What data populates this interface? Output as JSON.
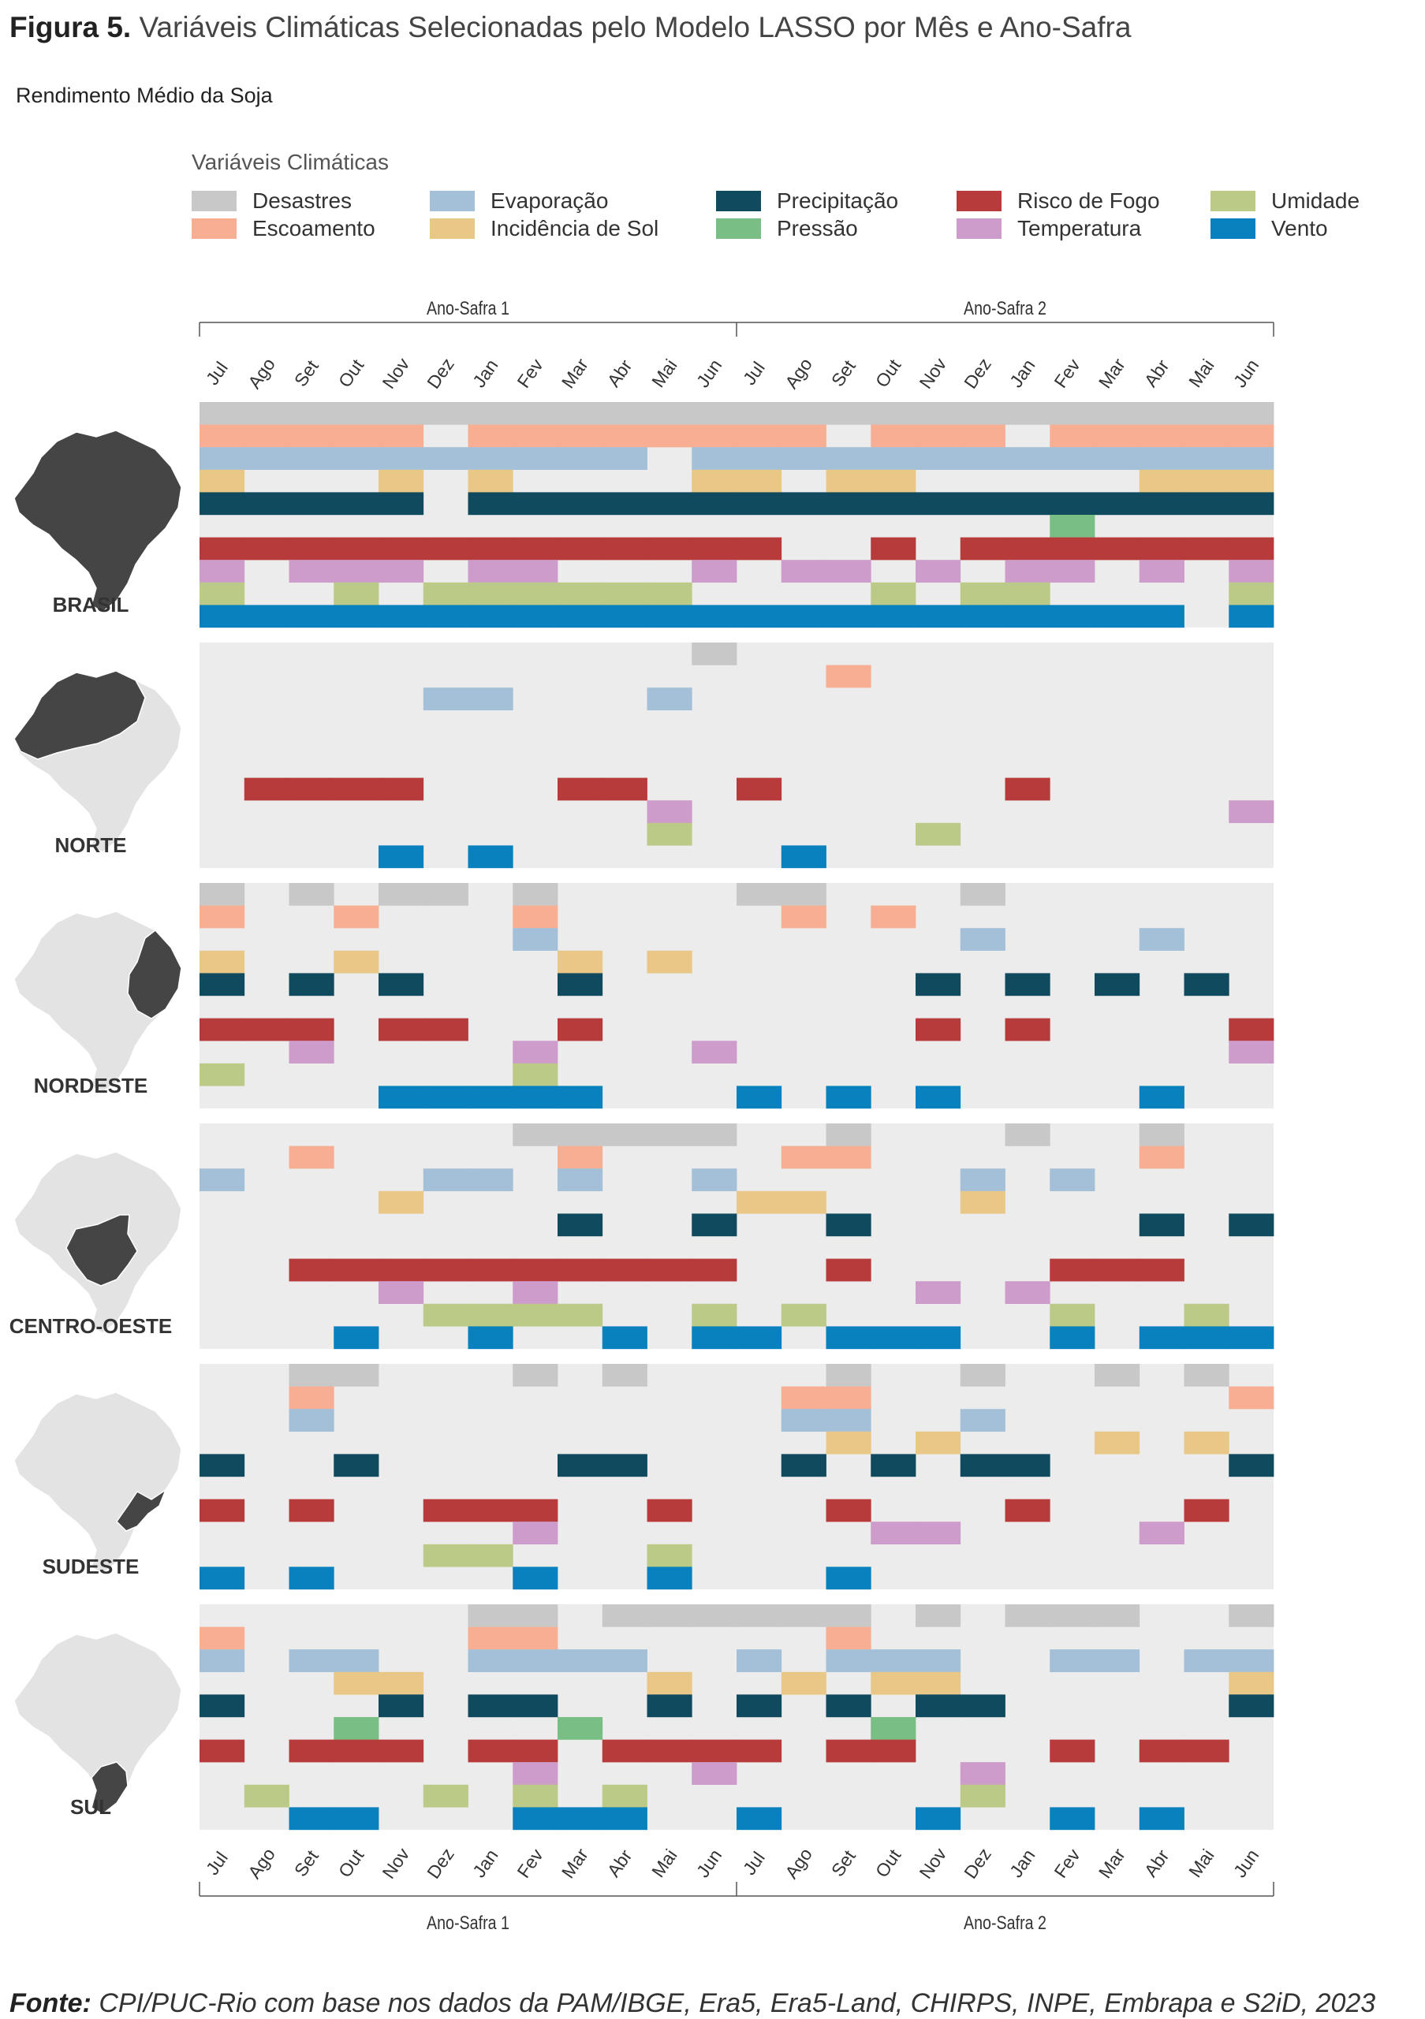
{
  "figure": {
    "label": "Figura 5.",
    "title": "Variáveis Climáticas Selecionadas pelo Modelo LASSO por Mês e Ano-Safra",
    "subtitle": "Rendimento Médio da Soja",
    "source_label": "Fonte:",
    "source_text": "CPI/PUC-Rio com base nos dados da PAM/IBGE, Era5, Era5-Land, CHIRPS, INPE, Embrapa e S2iD, 2023"
  },
  "chart_data": {
    "type": "heatmap",
    "legend_title": "Variáveis Climáticas",
    "variables": [
      {
        "name": "Desastres",
        "color": "#c8c8c8"
      },
      {
        "name": "Escoamento",
        "color": "#f7ae93"
      },
      {
        "name": "Evaporação",
        "color": "#a3c0d8"
      },
      {
        "name": "Incidência de Sol",
        "color": "#e9c887"
      },
      {
        "name": "Precipitação",
        "color": "#0f4a5f"
      },
      {
        "name": "Pressão",
        "color": "#79be85"
      },
      {
        "name": "Risco de Fogo",
        "color": "#b83b3c"
      },
      {
        "name": "Temperatura",
        "color": "#ce9cca"
      },
      {
        "name": "Umidade",
        "color": "#bcca88"
      },
      {
        "name": "Vento",
        "color": "#0981be"
      }
    ],
    "periods": [
      "Ano-Safra 1",
      "Ano-Safra 2"
    ],
    "months": [
      "Jul",
      "Ago",
      "Set",
      "Out",
      "Nov",
      "Dez",
      "Jan",
      "Fev",
      "Mar",
      "Abr",
      "Mai",
      "Jun",
      "Jul",
      "Ago",
      "Set",
      "Out",
      "Nov",
      "Dez",
      "Jan",
      "Fev",
      "Mar",
      "Abr",
      "Mai",
      "Jun"
    ],
    "background_color": "#ececec",
    "regions": [
      {
        "name": "BRASIL",
        "selected": {
          "Desastres": [
            0,
            1,
            2,
            3,
            4,
            5,
            6,
            7,
            8,
            9,
            10,
            11,
            12,
            13,
            14,
            15,
            16,
            17,
            18,
            19,
            20,
            21,
            22,
            23
          ],
          "Escoamento": [
            0,
            1,
            2,
            3,
            4,
            6,
            7,
            8,
            9,
            10,
            11,
            12,
            13,
            15,
            16,
            17,
            19,
            20,
            21,
            22,
            23
          ],
          "Evaporação": [
            0,
            1,
            2,
            3,
            4,
            5,
            6,
            7,
            8,
            9,
            11,
            12,
            13,
            14,
            15,
            16,
            17,
            18,
            19,
            20,
            21,
            22,
            23
          ],
          "Incidência de Sol": [
            0,
            4,
            6,
            11,
            12,
            14,
            15,
            21,
            22,
            23
          ],
          "Precipitação": [
            0,
            1,
            2,
            3,
            4,
            6,
            7,
            8,
            9,
            10,
            11,
            12,
            13,
            14,
            15,
            16,
            17,
            18,
            19,
            20,
            21,
            22,
            23
          ],
          "Pressão": [
            19
          ],
          "Risco de Fogo": [
            0,
            1,
            2,
            3,
            4,
            5,
            6,
            7,
            8,
            9,
            10,
            11,
            12,
            15,
            17,
            18,
            19,
            20,
            21,
            22,
            23
          ],
          "Temperatura": [
            0,
            2,
            3,
            4,
            6,
            7,
            11,
            13,
            14,
            16,
            18,
            19,
            21,
            23
          ],
          "Umidade": [
            0,
            3,
            5,
            6,
            7,
            8,
            9,
            10,
            15,
            17,
            18,
            23
          ],
          "Vento": [
            0,
            1,
            2,
            3,
            4,
            5,
            6,
            7,
            8,
            9,
            10,
            11,
            12,
            13,
            14,
            15,
            16,
            17,
            18,
            19,
            20,
            21,
            23
          ]
        }
      },
      {
        "name": "NORTE",
        "selected": {
          "Desastres": [
            11
          ],
          "Escoamento": [
            14
          ],
          "Evaporação": [
            5,
            6,
            10
          ],
          "Risco de Fogo": [
            1,
            2,
            3,
            4,
            8,
            9,
            12,
            18
          ],
          "Temperatura": [
            10,
            23
          ],
          "Umidade": [
            10,
            16
          ],
          "Vento": [
            4,
            6,
            13
          ]
        }
      },
      {
        "name": "NORDESTE",
        "selected": {
          "Desastres": [
            0,
            2,
            4,
            5,
            7,
            12,
            13,
            17
          ],
          "Escoamento": [
            0,
            3,
            7,
            13,
            15
          ],
          "Evaporação": [
            7,
            17,
            21
          ],
          "Incidência de Sol": [
            0,
            3,
            8,
            10
          ],
          "Precipitação": [
            0,
            2,
            4,
            8,
            16,
            18,
            20,
            22
          ],
          "Risco de Fogo": [
            0,
            1,
            2,
            4,
            5,
            8,
            16,
            18,
            23
          ],
          "Temperatura": [
            2,
            7,
            11,
            23
          ],
          "Umidade": [
            0,
            7
          ],
          "Vento": [
            4,
            5,
            6,
            7,
            8,
            12,
            14,
            16,
            21
          ]
        }
      },
      {
        "name": "CENTRO-OESTE",
        "selected": {
          "Desastres": [
            7,
            8,
            9,
            10,
            11,
            14,
            18,
            21
          ],
          "Escoamento": [
            2,
            8,
            13,
            14,
            21
          ],
          "Evaporação": [
            0,
            5,
            6,
            8,
            11,
            17,
            19
          ],
          "Incidência de Sol": [
            4,
            12,
            13,
            17
          ],
          "Precipitação": [
            8,
            11,
            14,
            21,
            23
          ],
          "Risco de Fogo": [
            2,
            3,
            4,
            5,
            6,
            7,
            8,
            9,
            10,
            11,
            14,
            19,
            20,
            21
          ],
          "Temperatura": [
            4,
            7,
            16,
            18
          ],
          "Umidade": [
            5,
            6,
            7,
            8,
            11,
            13,
            19,
            22
          ],
          "Vento": [
            3,
            6,
            9,
            11,
            12,
            14,
            15,
            16,
            19,
            21,
            22,
            23
          ]
        }
      },
      {
        "name": "SUDESTE",
        "selected": {
          "Desastres": [
            2,
            3,
            7,
            9,
            14,
            17,
            20,
            22
          ],
          "Escoamento": [
            2,
            13,
            14,
            23
          ],
          "Evaporação": [
            2,
            13,
            14,
            17
          ],
          "Incidência de Sol": [
            14,
            16,
            20,
            22
          ],
          "Precipitação": [
            0,
            3,
            8,
            9,
            13,
            15,
            17,
            18,
            23
          ],
          "Risco de Fogo": [
            0,
            2,
            5,
            6,
            7,
            10,
            14,
            18,
            22
          ],
          "Temperatura": [
            7,
            15,
            16,
            21
          ],
          "Umidade": [
            5,
            6,
            10
          ],
          "Vento": [
            0,
            2,
            7,
            10,
            14
          ]
        }
      },
      {
        "name": "SUL",
        "selected": {
          "Desastres": [
            6,
            7,
            9,
            10,
            11,
            12,
            13,
            14,
            16,
            18,
            19,
            20,
            23
          ],
          "Escoamento": [
            0,
            6,
            7,
            14
          ],
          "Evaporação": [
            0,
            2,
            3,
            6,
            7,
            8,
            9,
            12,
            14,
            15,
            16,
            19,
            20,
            22,
            23
          ],
          "Incidência de Sol": [
            3,
            4,
            10,
            13,
            15,
            16,
            23
          ],
          "Precipitação": [
            0,
            4,
            6,
            7,
            10,
            12,
            14,
            16,
            17,
            23
          ],
          "Pressão": [
            3,
            8,
            15
          ],
          "Risco de Fogo": [
            0,
            2,
            3,
            4,
            6,
            7,
            9,
            10,
            11,
            12,
            14,
            15,
            19,
            21,
            22
          ],
          "Temperatura": [
            7,
            11,
            17
          ],
          "Umidade": [
            1,
            5,
            7,
            9,
            17
          ],
          "Vento": [
            2,
            3,
            7,
            8,
            9,
            12,
            16,
            19,
            21
          ]
        }
      }
    ]
  }
}
